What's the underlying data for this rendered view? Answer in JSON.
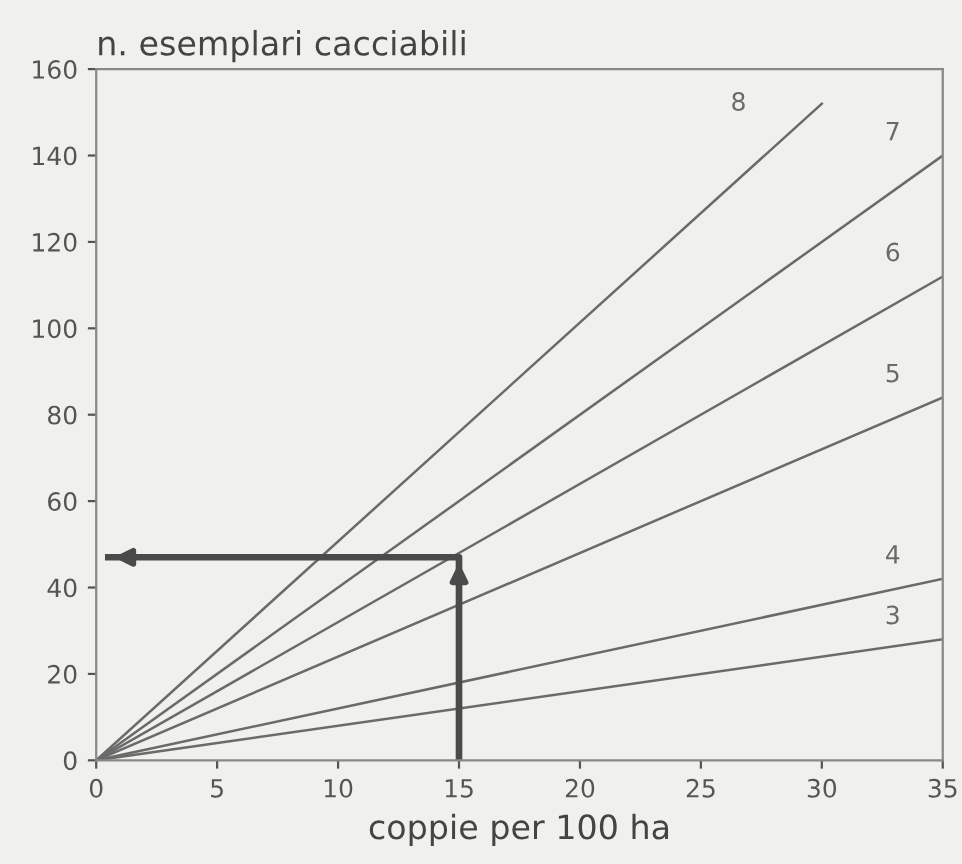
{
  "chart_data": {
    "type": "line",
    "ylabel": "n. esemplari cacciabili",
    "xlabel": "coppie per 100 ha",
    "series": [
      {
        "name": "3",
        "color": "#6a6a6a",
        "x": [
          0,
          35
        ],
        "values": [
          0,
          28
        ]
      },
      {
        "name": "4",
        "color": "#6a6a6a",
        "x": [
          0,
          35
        ],
        "values": [
          0,
          42
        ]
      },
      {
        "name": "5",
        "color": "#6a6a6a",
        "x": [
          0,
          35
        ],
        "values": [
          0,
          84
        ]
      },
      {
        "name": "6",
        "color": "#6a6a6a",
        "x": [
          0,
          35
        ],
        "values": [
          0,
          112
        ]
      },
      {
        "name": "7",
        "color": "#6a6a6a",
        "x": [
          0,
          35
        ],
        "values": [
          0,
          140
        ]
      },
      {
        "name": "8",
        "color": "#6a6a6a",
        "x": [
          0,
          30
        ],
        "values": [
          0,
          152
        ]
      },
      {
        "color": "#4a4a4a",
        "x": [
          15,
          15,
          0.5
        ],
        "values": [
          0,
          47,
          47
        ]
      }
    ],
    "xlim": [
      0,
      35
    ],
    "xticks": [
      0,
      5,
      10,
      15,
      20,
      25,
      30,
      35
    ],
    "ylim": [
      0,
      160
    ],
    "yticks": [
      0,
      20,
      40,
      60,
      80,
      100,
      120,
      140,
      160
    ],
    "grid": false,
    "legend": false,
    "marker": "none",
    "line_style": "solid"
  }
}
